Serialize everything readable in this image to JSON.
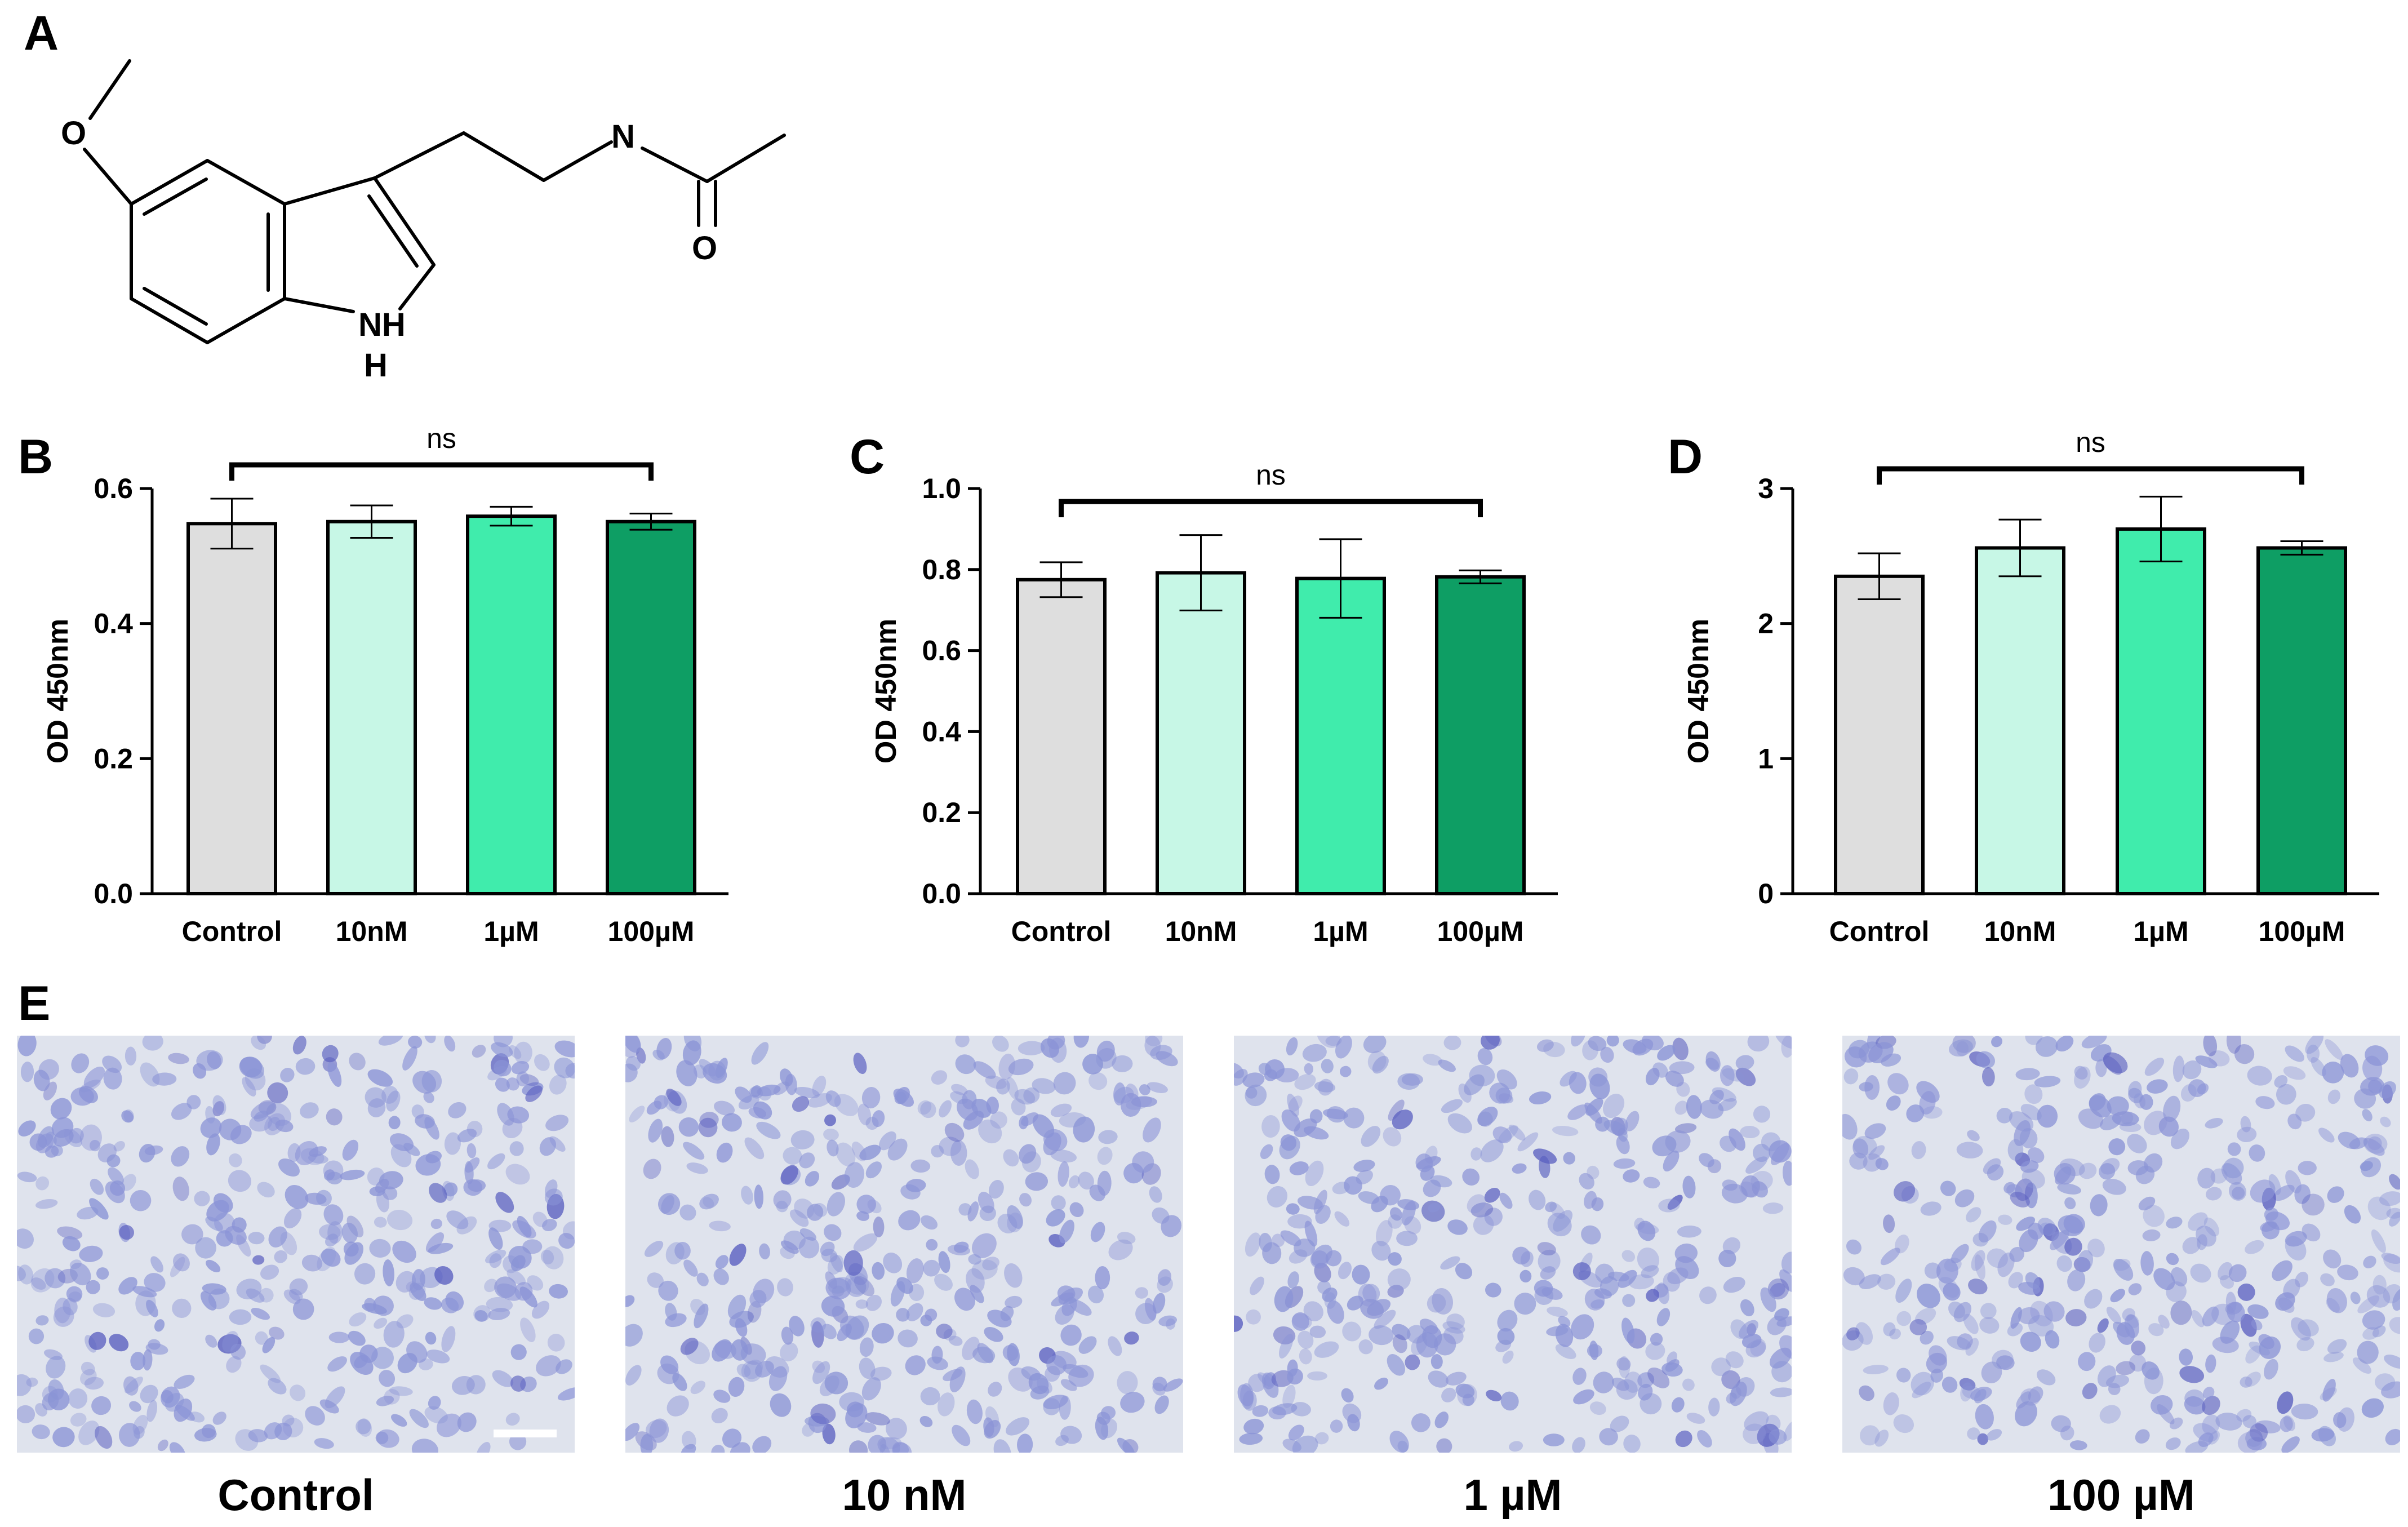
{
  "panels": {
    "A": "A",
    "B": "B",
    "C": "C",
    "D": "D",
    "E": "E"
  },
  "structure": {
    "atoms": {
      "o_methoxy": "O",
      "n_amide": "N",
      "o_carbonyl": "O",
      "nh": "NH",
      "h": "H"
    }
  },
  "colors": {
    "control": "#dedede",
    "c10nM": "#c7f7e6",
    "c1uM": "#40ecac",
    "c100uM": "#0e9e64",
    "stain_bg": "#dfe3ed",
    "cell": "#8a93d6",
    "cell_dark": "#5a5fc0"
  },
  "chart_data": [
    {
      "type": "bar",
      "panel": "B",
      "categories": [
        "Control",
        "10nM",
        "1µM",
        "100µM"
      ],
      "values": [
        0.548,
        0.551,
        0.559,
        0.551
      ],
      "errors": [
        0.037,
        0.024,
        0.014,
        0.012
      ],
      "ylabel": "OD 450nm",
      "ylim": [
        0,
        0.6
      ],
      "yticks": [
        0.0,
        0.2,
        0.4,
        0.6
      ],
      "ytick_labels": [
        "0.0",
        "0.2",
        "0.4",
        "0.6"
      ],
      "significance": {
        "from": "Control",
        "to": "100µM",
        "label": "ns"
      }
    },
    {
      "type": "bar",
      "panel": "C",
      "categories": [
        "Control",
        "10nM",
        "1µM",
        "100µM"
      ],
      "values": [
        0.775,
        0.792,
        0.778,
        0.782
      ],
      "errors": [
        0.043,
        0.093,
        0.097,
        0.016
      ],
      "ylabel": "OD 450nm",
      "ylim": [
        0,
        1.0
      ],
      "yticks": [
        0.0,
        0.2,
        0.4,
        0.6,
        0.8,
        1.0
      ],
      "ytick_labels": [
        "0.0",
        "0.2",
        "0.4",
        "0.6",
        "0.8",
        "1.0"
      ],
      "significance": {
        "from": "Control",
        "to": "100µM",
        "label": "ns"
      }
    },
    {
      "type": "bar",
      "panel": "D",
      "categories": [
        "Control",
        "10nM",
        "1µM",
        "100µM"
      ],
      "values": [
        2.35,
        2.56,
        2.7,
        2.56
      ],
      "errors": [
        0.17,
        0.21,
        0.24,
        0.05
      ],
      "ylabel": "OD 450nm",
      "ylim": [
        0,
        3
      ],
      "yticks": [
        0,
        1,
        2,
        3
      ],
      "ytick_labels": [
        "0",
        "1",
        "2",
        "3"
      ],
      "significance": {
        "from": "Control",
        "to": "100µM",
        "label": "ns"
      }
    }
  ],
  "images": {
    "captions": [
      "Control",
      "10 nM",
      "1 µM",
      "100 µM"
    ]
  }
}
